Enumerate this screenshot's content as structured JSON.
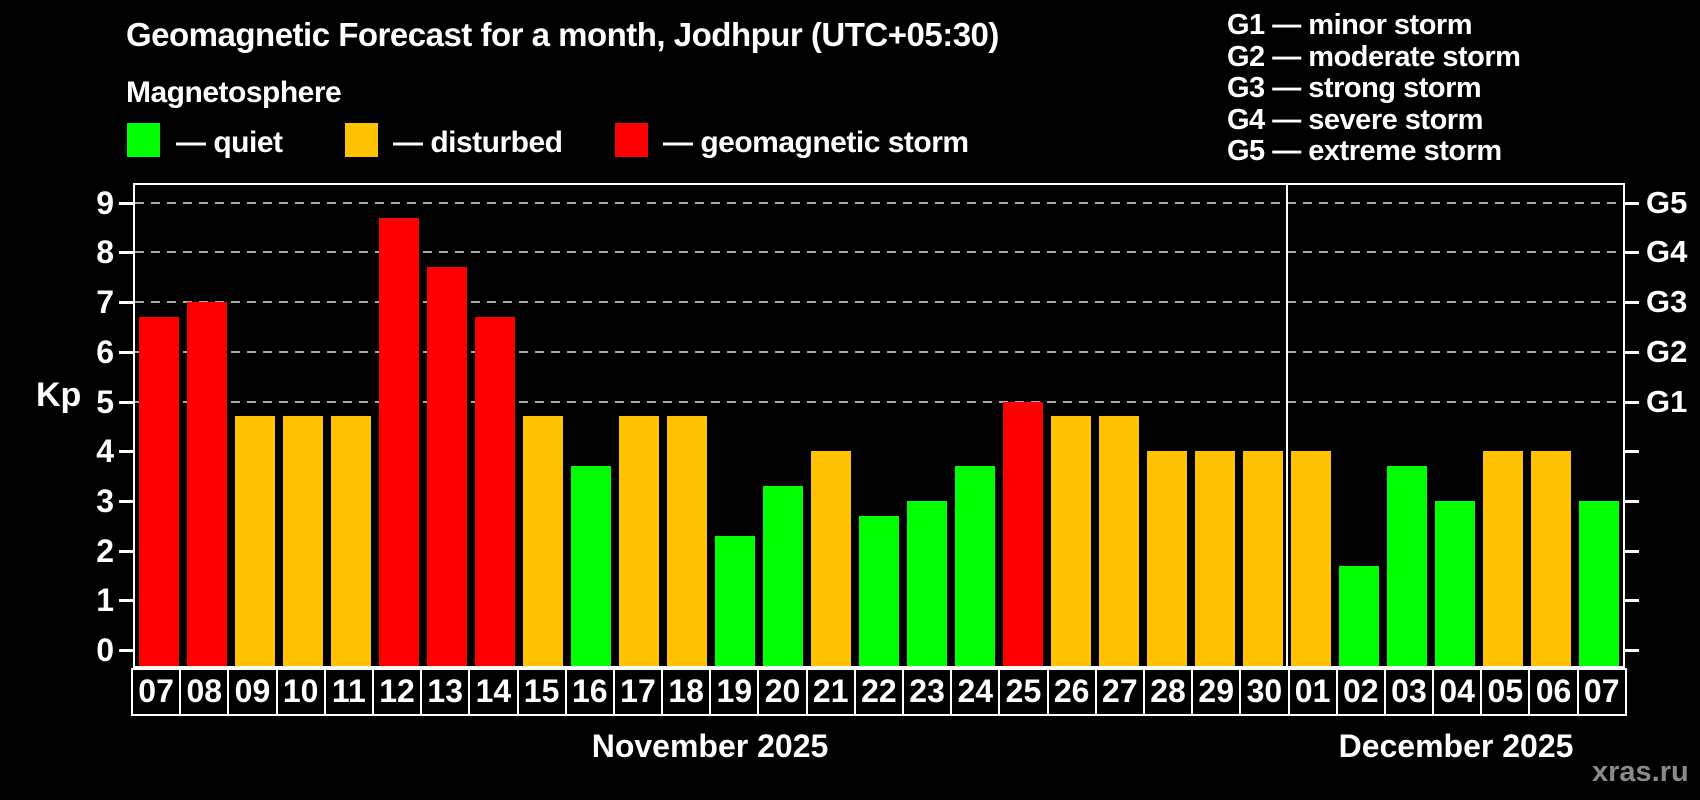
{
  "header": {
    "title": "Geomagnetic Forecast for a month, Jodhpur (UTC+05:30)",
    "subtitle": "Magnetosphere"
  },
  "legend": {
    "items": [
      {
        "key": "quiet",
        "label": "— quiet",
        "color": "#00ff00"
      },
      {
        "key": "disturbed",
        "label": "— disturbed",
        "color": "#ffc200"
      },
      {
        "key": "storm",
        "label": "— geomagnetic storm",
        "color": "#ff0000"
      }
    ]
  },
  "g_scale_legend": {
    "items": [
      "G1 — minor storm",
      "G2 — moderate storm",
      "G3 — strong storm",
      "G4 — severe storm",
      "G5 — extreme storm"
    ]
  },
  "chart_data": {
    "type": "bar",
    "title": "Geomagnetic Forecast for a month, Jodhpur (UTC+05:30)",
    "ylabel": "Kp",
    "ylim": [
      0,
      9.4
    ],
    "grid": "dashed horizontal at Kp 5-9",
    "y_ticks": [
      0,
      1,
      2,
      3,
      4,
      5,
      6,
      7,
      8,
      9
    ],
    "grid_levels": [
      5,
      6,
      7,
      8,
      9
    ],
    "right_axis_ticks": [
      {
        "label": "G1",
        "kp": 5
      },
      {
        "label": "G2",
        "kp": 6
      },
      {
        "label": "G3",
        "kp": 7
      },
      {
        "label": "G4",
        "kp": 8
      },
      {
        "label": "G5",
        "kp": 9
      }
    ],
    "status_colors": {
      "quiet": "#00ff00",
      "disturbed": "#ffc200",
      "storm": "#ff0000"
    },
    "months": [
      {
        "label": "November 2025",
        "days": [
          {
            "day": "07",
            "kp": 6.7,
            "status": "storm"
          },
          {
            "day": "08",
            "kp": 7.0,
            "status": "storm"
          },
          {
            "day": "09",
            "kp": 4.7,
            "status": "disturbed"
          },
          {
            "day": "10",
            "kp": 4.7,
            "status": "disturbed"
          },
          {
            "day": "11",
            "kp": 4.7,
            "status": "disturbed"
          },
          {
            "day": "12",
            "kp": 8.7,
            "status": "storm"
          },
          {
            "day": "13",
            "kp": 7.7,
            "status": "storm"
          },
          {
            "day": "14",
            "kp": 6.7,
            "status": "storm"
          },
          {
            "day": "15",
            "kp": 4.7,
            "status": "disturbed"
          },
          {
            "day": "16",
            "kp": 3.7,
            "status": "quiet"
          },
          {
            "day": "17",
            "kp": 4.7,
            "status": "disturbed"
          },
          {
            "day": "18",
            "kp": 4.7,
            "status": "disturbed"
          },
          {
            "day": "19",
            "kp": 2.3,
            "status": "quiet"
          },
          {
            "day": "20",
            "kp": 3.3,
            "status": "quiet"
          },
          {
            "day": "21",
            "kp": 4.0,
            "status": "disturbed"
          },
          {
            "day": "22",
            "kp": 2.7,
            "status": "quiet"
          },
          {
            "day": "23",
            "kp": 3.0,
            "status": "quiet"
          },
          {
            "day": "24",
            "kp": 3.7,
            "status": "quiet"
          },
          {
            "day": "25",
            "kp": 5.0,
            "status": "storm"
          },
          {
            "day": "26",
            "kp": 4.7,
            "status": "disturbed"
          },
          {
            "day": "27",
            "kp": 4.7,
            "status": "disturbed"
          },
          {
            "day": "28",
            "kp": 4.0,
            "status": "disturbed"
          },
          {
            "day": "29",
            "kp": 4.0,
            "status": "disturbed"
          },
          {
            "day": "30",
            "kp": 4.0,
            "status": "disturbed"
          }
        ]
      },
      {
        "label": "December 2025",
        "days": [
          {
            "day": "01",
            "kp": 4.0,
            "status": "disturbed"
          },
          {
            "day": "02",
            "kp": 1.7,
            "status": "quiet"
          },
          {
            "day": "03",
            "kp": 3.7,
            "status": "quiet"
          },
          {
            "day": "04",
            "kp": 3.0,
            "status": "quiet"
          },
          {
            "day": "05",
            "kp": 4.0,
            "status": "disturbed"
          },
          {
            "day": "06",
            "kp": 4.0,
            "status": "disturbed"
          },
          {
            "day": "07",
            "kp": 3.0,
            "status": "quiet"
          }
        ]
      }
    ]
  },
  "watermark": {
    "text": "xras.ru"
  }
}
